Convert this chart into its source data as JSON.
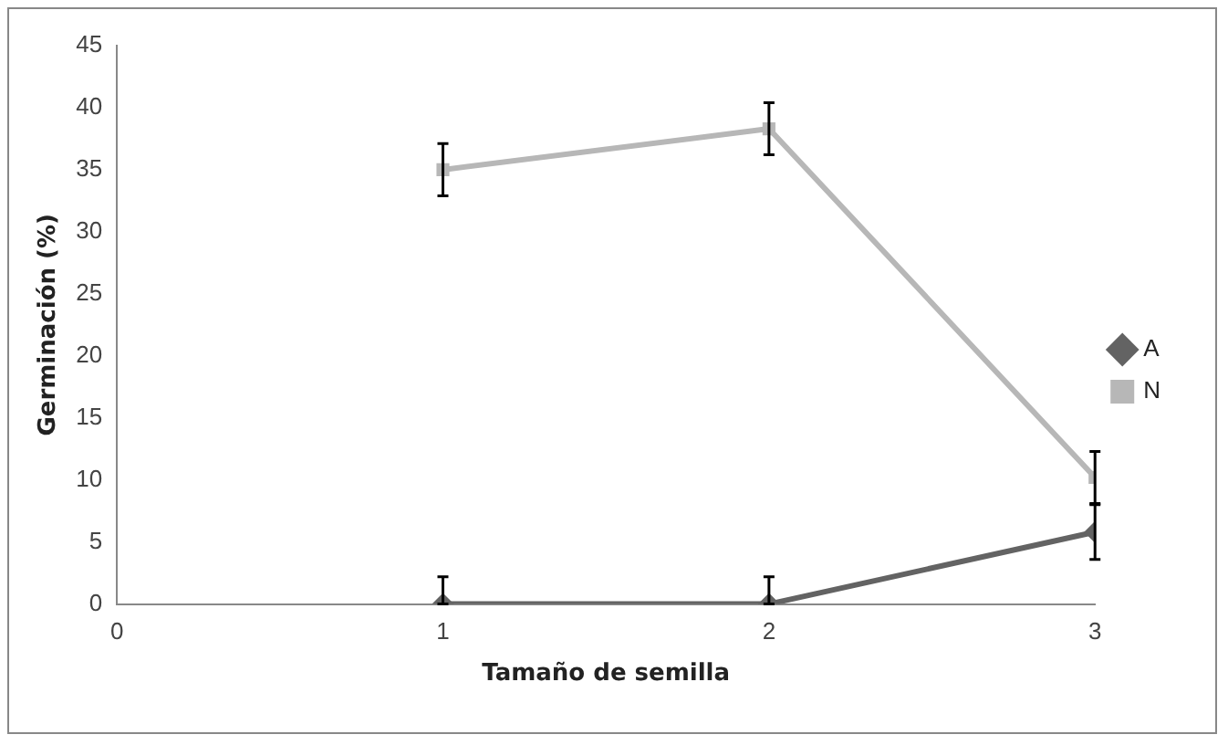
{
  "chart_data": {
    "type": "line",
    "xlabel": "Tamaño de semilla",
    "ylabel": "Germinación (%)",
    "x": [
      1,
      2,
      3
    ],
    "series": [
      {
        "name": "A",
        "color": "#636363",
        "marker": "diamond",
        "values": [
          0,
          0,
          5.8
        ],
        "errors": [
          [
            0,
            2.2
          ],
          [
            0,
            2.2
          ],
          2.2
        ]
      },
      {
        "name": "N",
        "color": "#b7b7b7",
        "marker": "square",
        "values": [
          35,
          38.3,
          10.2
        ],
        "errors": [
          2.1,
          2.1,
          2.1
        ]
      }
    ],
    "xlim": [
      0,
      3
    ],
    "xticks": [
      0,
      1,
      2,
      3
    ],
    "ylim": [
      0,
      45
    ],
    "yticks": [
      0,
      5,
      10,
      15,
      20,
      25,
      30,
      35,
      40,
      45
    ],
    "grid": false,
    "legend": "right",
    "line_style": "solid"
  }
}
